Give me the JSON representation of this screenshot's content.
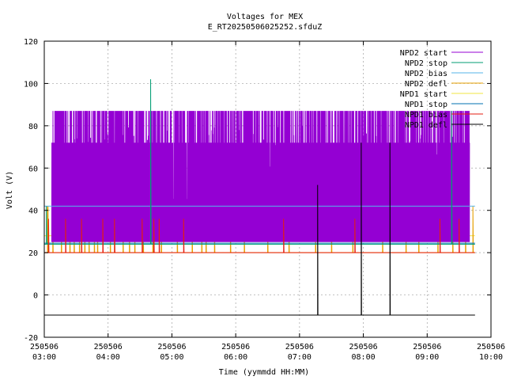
{
  "chart_data": {
    "type": "line",
    "title": "Voltages for MEX",
    "subtitle": "E_RT20250506025252.sfduZ",
    "xlabel": "Time (yymmdd HH:MM)",
    "ylabel": "Volt (V)",
    "xlim": [
      "250506 03:00",
      "250506 10:00"
    ],
    "ylim": [
      -20,
      120
    ],
    "y_ticks": [
      -20,
      0,
      20,
      40,
      60,
      80,
      100,
      120
    ],
    "x_ticks": [
      {
        "date": "250506",
        "time": "03:00"
      },
      {
        "date": "250506",
        "time": "04:00"
      },
      {
        "date": "250506",
        "time": "05:00"
      },
      {
        "date": "250506",
        "time": "06:00"
      },
      {
        "date": "250506",
        "time": "07:00"
      },
      {
        "date": "250506",
        "time": "08:00"
      },
      {
        "date": "250506",
        "time": "09:00"
      },
      {
        "date": "250506",
        "time": "10:00"
      }
    ],
    "grid": true,
    "legend_position": "top-right",
    "series": [
      {
        "name": "NPD2 start",
        "color": "#9400d3",
        "time_range": [
          "03:07",
          "09:40"
        ],
        "levels": [
          25,
          72,
          87
        ],
        "notes": "oscillates between ~25 V and ~72–87 V"
      },
      {
        "name": "NPD2 stop",
        "color": "#009e73",
        "time_range": [
          "03:00",
          "09:45"
        ],
        "base": 24,
        "spikes": [
          {
            "time": "04:40",
            "value": 102
          },
          {
            "time": "09:23",
            "value": 87
          }
        ]
      },
      {
        "name": "NPD2 bias",
        "color": "#56b4e9",
        "time_range": [
          "03:00",
          "09:45"
        ],
        "base": 42
      },
      {
        "name": "NPD2 defl",
        "color": "#e69f00",
        "time_range": [
          "03:00",
          "09:45"
        ],
        "base": 20,
        "spike_value": 42
      },
      {
        "name": "NPD1 start",
        "color": "#f0e442",
        "time_range": [
          "03:00",
          "09:45"
        ],
        "base": 28
      },
      {
        "name": "NPD1 stop",
        "color": "#0072b2",
        "time_range": [
          "03:00",
          "09:45"
        ],
        "base": 24.5
      },
      {
        "name": "NPD1 bias",
        "color": "#e51e10",
        "time_range": [
          "03:00",
          "09:45"
        ],
        "base": 20,
        "spike_value": 36
      },
      {
        "name": "NPD1 defl",
        "color": "#000000",
        "time_range": [
          "03:00",
          "09:45"
        ],
        "base": -9.5,
        "spikes": [
          {
            "time": "07:17",
            "value": 52
          },
          {
            "time": "07:58",
            "value": 72
          },
          {
            "time": "08:25",
            "value": 72
          }
        ]
      }
    ]
  }
}
